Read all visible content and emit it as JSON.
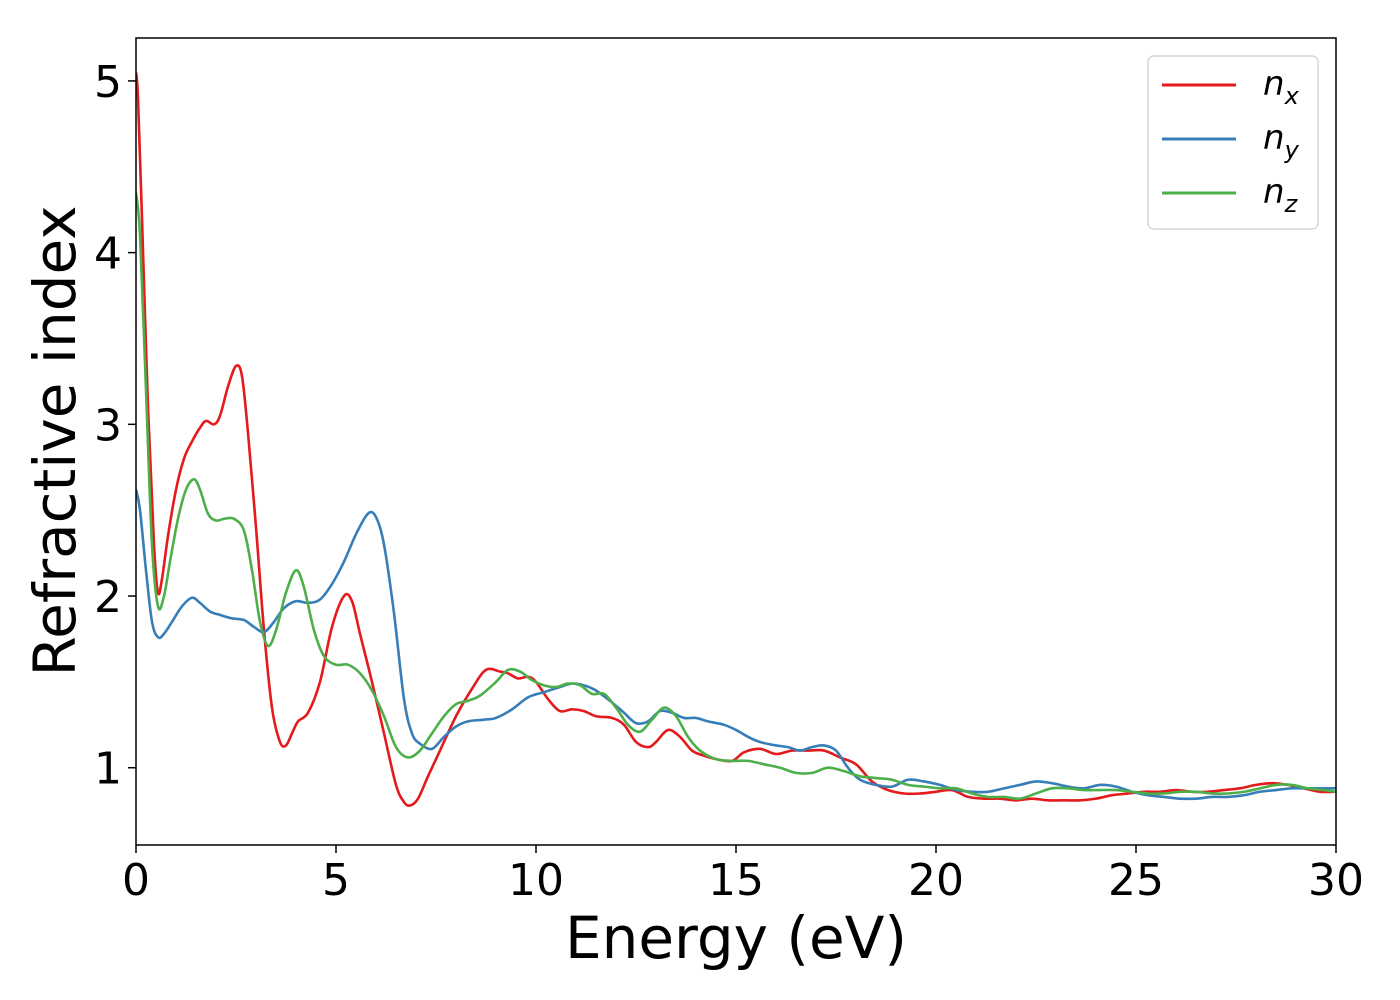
{
  "chart_data": {
    "type": "line",
    "title": "",
    "xlabel": "Energy (eV)",
    "ylabel": "Refractive index",
    "xlim": [
      0,
      30
    ],
    "ylim": [
      0.55,
      5.25
    ],
    "xticks": [
      0,
      5,
      10,
      15,
      20,
      25,
      30
    ],
    "xtick_labels": [
      "0",
      "5",
      "10",
      "15",
      "20",
      "25",
      "30"
    ],
    "yticks": [
      1,
      2,
      3,
      4,
      5
    ],
    "ytick_labels": [
      "1",
      "2",
      "3",
      "4",
      "5"
    ],
    "grid": false,
    "legend_position": "top-right",
    "series": [
      {
        "name": "n_x",
        "label_main": "n",
        "label_sub": "x",
        "color": "#e41a1c",
        "points": [
          [
            0,
            5.05
          ],
          [
            0.05,
            4.9
          ],
          [
            0.15,
            4.2
          ],
          [
            0.3,
            3.1
          ],
          [
            0.45,
            2.3
          ],
          [
            0.55,
            2.02
          ],
          [
            0.65,
            2.1
          ],
          [
            0.8,
            2.35
          ],
          [
            1.0,
            2.62
          ],
          [
            1.2,
            2.8
          ],
          [
            1.4,
            2.9
          ],
          [
            1.6,
            2.98
          ],
          [
            1.75,
            3.02
          ],
          [
            1.95,
            3.0
          ],
          [
            2.1,
            3.05
          ],
          [
            2.3,
            3.22
          ],
          [
            2.5,
            3.34
          ],
          [
            2.65,
            3.28
          ],
          [
            2.8,
            2.95
          ],
          [
            3.0,
            2.4
          ],
          [
            3.2,
            1.8
          ],
          [
            3.4,
            1.35
          ],
          [
            3.6,
            1.15
          ],
          [
            3.75,
            1.13
          ],
          [
            3.9,
            1.2
          ],
          [
            4.05,
            1.27
          ],
          [
            4.3,
            1.32
          ],
          [
            4.6,
            1.5
          ],
          [
            4.9,
            1.82
          ],
          [
            5.2,
            2.0
          ],
          [
            5.4,
            1.97
          ],
          [
            5.6,
            1.78
          ],
          [
            5.9,
            1.5
          ],
          [
            6.2,
            1.2
          ],
          [
            6.5,
            0.9
          ],
          [
            6.7,
            0.8
          ],
          [
            6.85,
            0.78
          ],
          [
            7.05,
            0.82
          ],
          [
            7.3,
            0.95
          ],
          [
            7.6,
            1.1
          ],
          [
            8.0,
            1.3
          ],
          [
            8.4,
            1.46
          ],
          [
            8.75,
            1.57
          ],
          [
            9.1,
            1.56
          ],
          [
            9.3,
            1.55
          ],
          [
            9.55,
            1.52
          ],
          [
            9.8,
            1.53
          ],
          [
            10.0,
            1.5
          ],
          [
            10.3,
            1.4
          ],
          [
            10.6,
            1.33
          ],
          [
            10.9,
            1.34
          ],
          [
            11.2,
            1.33
          ],
          [
            11.5,
            1.3
          ],
          [
            11.9,
            1.29
          ],
          [
            12.2,
            1.25
          ],
          [
            12.5,
            1.15
          ],
          [
            12.8,
            1.12
          ],
          [
            13.0,
            1.15
          ],
          [
            13.3,
            1.22
          ],
          [
            13.6,
            1.18
          ],
          [
            13.9,
            1.1
          ],
          [
            14.2,
            1.07
          ],
          [
            14.5,
            1.05
          ],
          [
            14.9,
            1.04
          ],
          [
            15.2,
            1.09
          ],
          [
            15.6,
            1.11
          ],
          [
            16.0,
            1.08
          ],
          [
            16.4,
            1.1
          ],
          [
            16.8,
            1.1
          ],
          [
            17.2,
            1.1
          ],
          [
            17.6,
            1.06
          ],
          [
            18.0,
            1.02
          ],
          [
            18.4,
            0.92
          ],
          [
            18.8,
            0.87
          ],
          [
            19.2,
            0.85
          ],
          [
            19.6,
            0.85
          ],
          [
            20.0,
            0.86
          ],
          [
            20.4,
            0.87
          ],
          [
            20.8,
            0.83
          ],
          [
            21.2,
            0.82
          ],
          [
            21.6,
            0.82
          ],
          [
            22.0,
            0.81
          ],
          [
            22.4,
            0.82
          ],
          [
            22.8,
            0.81
          ],
          [
            23.2,
            0.81
          ],
          [
            23.6,
            0.81
          ],
          [
            24.0,
            0.82
          ],
          [
            24.4,
            0.84
          ],
          [
            24.8,
            0.85
          ],
          [
            25.2,
            0.86
          ],
          [
            25.6,
            0.86
          ],
          [
            26.0,
            0.87
          ],
          [
            26.4,
            0.86
          ],
          [
            26.8,
            0.86
          ],
          [
            27.2,
            0.87
          ],
          [
            27.6,
            0.88
          ],
          [
            28.0,
            0.9
          ],
          [
            28.4,
            0.91
          ],
          [
            28.8,
            0.9
          ],
          [
            29.2,
            0.88
          ],
          [
            29.6,
            0.86
          ],
          [
            30.0,
            0.86
          ]
        ]
      },
      {
        "name": "n_y",
        "label_main": "n",
        "label_sub": "y",
        "color": "#377eb8",
        "points": [
          [
            0,
            2.62
          ],
          [
            0.1,
            2.5
          ],
          [
            0.25,
            2.15
          ],
          [
            0.4,
            1.85
          ],
          [
            0.55,
            1.76
          ],
          [
            0.7,
            1.78
          ],
          [
            0.9,
            1.85
          ],
          [
            1.15,
            1.94
          ],
          [
            1.4,
            1.99
          ],
          [
            1.6,
            1.96
          ],
          [
            1.85,
            1.91
          ],
          [
            2.1,
            1.89
          ],
          [
            2.4,
            1.87
          ],
          [
            2.7,
            1.86
          ],
          [
            2.95,
            1.82
          ],
          [
            3.2,
            1.79
          ],
          [
            3.45,
            1.85
          ],
          [
            3.7,
            1.93
          ],
          [
            4.0,
            1.97
          ],
          [
            4.3,
            1.96
          ],
          [
            4.6,
            1.98
          ],
          [
            4.9,
            2.07
          ],
          [
            5.2,
            2.2
          ],
          [
            5.5,
            2.36
          ],
          [
            5.8,
            2.48
          ],
          [
            6.0,
            2.46
          ],
          [
            6.2,
            2.3
          ],
          [
            6.45,
            1.9
          ],
          [
            6.7,
            1.4
          ],
          [
            6.9,
            1.2
          ],
          [
            7.1,
            1.14
          ],
          [
            7.4,
            1.11
          ],
          [
            7.7,
            1.18
          ],
          [
            8.0,
            1.24
          ],
          [
            8.3,
            1.27
          ],
          [
            8.7,
            1.28
          ],
          [
            9.0,
            1.29
          ],
          [
            9.4,
            1.34
          ],
          [
            9.8,
            1.41
          ],
          [
            10.2,
            1.44
          ],
          [
            10.6,
            1.47
          ],
          [
            10.9,
            1.49
          ],
          [
            11.2,
            1.48
          ],
          [
            11.5,
            1.45
          ],
          [
            11.9,
            1.38
          ],
          [
            12.2,
            1.32
          ],
          [
            12.5,
            1.26
          ],
          [
            12.8,
            1.27
          ],
          [
            13.1,
            1.33
          ],
          [
            13.4,
            1.32
          ],
          [
            13.7,
            1.29
          ],
          [
            14.0,
            1.29
          ],
          [
            14.3,
            1.27
          ],
          [
            14.7,
            1.25
          ],
          [
            15.0,
            1.22
          ],
          [
            15.3,
            1.18
          ],
          [
            15.6,
            1.15
          ],
          [
            16.0,
            1.13
          ],
          [
            16.3,
            1.12
          ],
          [
            16.6,
            1.1
          ],
          [
            16.9,
            1.12
          ],
          [
            17.2,
            1.13
          ],
          [
            17.5,
            1.1
          ],
          [
            17.8,
            1.0
          ],
          [
            18.1,
            0.93
          ],
          [
            18.5,
            0.9
          ],
          [
            18.9,
            0.89
          ],
          [
            19.3,
            0.93
          ],
          [
            19.7,
            0.92
          ],
          [
            20.1,
            0.9
          ],
          [
            20.5,
            0.87
          ],
          [
            20.9,
            0.86
          ],
          [
            21.3,
            0.86
          ],
          [
            21.7,
            0.88
          ],
          [
            22.1,
            0.9
          ],
          [
            22.5,
            0.92
          ],
          [
            22.9,
            0.91
          ],
          [
            23.3,
            0.89
          ],
          [
            23.7,
            0.88
          ],
          [
            24.1,
            0.9
          ],
          [
            24.5,
            0.89
          ],
          [
            24.9,
            0.86
          ],
          [
            25.3,
            0.84
          ],
          [
            25.7,
            0.83
          ],
          [
            26.1,
            0.82
          ],
          [
            26.5,
            0.82
          ],
          [
            26.9,
            0.83
          ],
          [
            27.3,
            0.83
          ],
          [
            27.7,
            0.84
          ],
          [
            28.1,
            0.86
          ],
          [
            28.5,
            0.87
          ],
          [
            28.9,
            0.88
          ],
          [
            29.3,
            0.88
          ],
          [
            29.7,
            0.88
          ],
          [
            30.0,
            0.88
          ]
        ]
      },
      {
        "name": "n_z",
        "label_main": "n",
        "label_sub": "z",
        "color": "#4daf4a",
        "points": [
          [
            0,
            4.35
          ],
          [
            0.1,
            4.1
          ],
          [
            0.25,
            3.2
          ],
          [
            0.4,
            2.3
          ],
          [
            0.55,
            1.94
          ],
          [
            0.7,
            2.0
          ],
          [
            0.85,
            2.2
          ],
          [
            1.05,
            2.45
          ],
          [
            1.25,
            2.62
          ],
          [
            1.45,
            2.68
          ],
          [
            1.6,
            2.62
          ],
          [
            1.8,
            2.48
          ],
          [
            2.0,
            2.44
          ],
          [
            2.2,
            2.45
          ],
          [
            2.45,
            2.45
          ],
          [
            2.7,
            2.38
          ],
          [
            2.9,
            2.15
          ],
          [
            3.1,
            1.85
          ],
          [
            3.3,
            1.71
          ],
          [
            3.5,
            1.8
          ],
          [
            3.75,
            2.02
          ],
          [
            4.0,
            2.15
          ],
          [
            4.2,
            2.05
          ],
          [
            4.45,
            1.8
          ],
          [
            4.7,
            1.65
          ],
          [
            5.0,
            1.6
          ],
          [
            5.3,
            1.6
          ],
          [
            5.6,
            1.55
          ],
          [
            5.9,
            1.45
          ],
          [
            6.2,
            1.3
          ],
          [
            6.5,
            1.12
          ],
          [
            6.8,
            1.06
          ],
          [
            7.1,
            1.1
          ],
          [
            7.4,
            1.2
          ],
          [
            7.7,
            1.3
          ],
          [
            8.0,
            1.37
          ],
          [
            8.3,
            1.39
          ],
          [
            8.6,
            1.42
          ],
          [
            9.0,
            1.5
          ],
          [
            9.3,
            1.57
          ],
          [
            9.6,
            1.56
          ],
          [
            9.9,
            1.51
          ],
          [
            10.2,
            1.48
          ],
          [
            10.5,
            1.47
          ],
          [
            10.8,
            1.49
          ],
          [
            11.1,
            1.48
          ],
          [
            11.4,
            1.43
          ],
          [
            11.7,
            1.43
          ],
          [
            12.0,
            1.35
          ],
          [
            12.3,
            1.25
          ],
          [
            12.6,
            1.21
          ],
          [
            12.9,
            1.28
          ],
          [
            13.2,
            1.35
          ],
          [
            13.5,
            1.3
          ],
          [
            13.8,
            1.18
          ],
          [
            14.1,
            1.1
          ],
          [
            14.5,
            1.05
          ],
          [
            14.9,
            1.04
          ],
          [
            15.3,
            1.04
          ],
          [
            15.7,
            1.02
          ],
          [
            16.1,
            1.0
          ],
          [
            16.5,
            0.97
          ],
          [
            16.9,
            0.97
          ],
          [
            17.3,
            1.0
          ],
          [
            17.7,
            0.98
          ],
          [
            18.1,
            0.95
          ],
          [
            18.5,
            0.94
          ],
          [
            18.9,
            0.93
          ],
          [
            19.3,
            0.9
          ],
          [
            19.7,
            0.89
          ],
          [
            20.1,
            0.88
          ],
          [
            20.5,
            0.88
          ],
          [
            20.9,
            0.85
          ],
          [
            21.3,
            0.83
          ],
          [
            21.7,
            0.83
          ],
          [
            22.1,
            0.82
          ],
          [
            22.5,
            0.85
          ],
          [
            22.9,
            0.88
          ],
          [
            23.3,
            0.88
          ],
          [
            23.7,
            0.87
          ],
          [
            24.1,
            0.87
          ],
          [
            24.5,
            0.87
          ],
          [
            24.9,
            0.86
          ],
          [
            25.3,
            0.85
          ],
          [
            25.7,
            0.85
          ],
          [
            26.1,
            0.86
          ],
          [
            26.5,
            0.86
          ],
          [
            26.9,
            0.85
          ],
          [
            27.3,
            0.85
          ],
          [
            27.7,
            0.86
          ],
          [
            28.1,
            0.88
          ],
          [
            28.5,
            0.9
          ],
          [
            28.9,
            0.9
          ],
          [
            29.3,
            0.88
          ],
          [
            29.7,
            0.87
          ],
          [
            30.0,
            0.86
          ]
        ]
      }
    ]
  }
}
